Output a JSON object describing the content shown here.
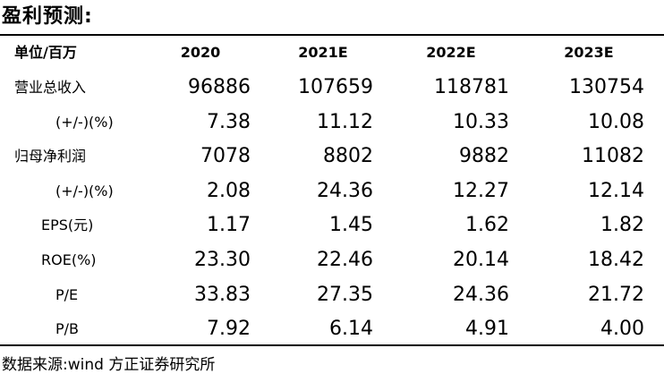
{
  "title": "盈利预测:",
  "header": {
    "unit_label": "单位/百万",
    "columns": [
      "2020",
      "2021E",
      "2022E",
      "2023E"
    ]
  },
  "rows": [
    {
      "label": "营业总收入",
      "values": [
        "96886",
        "107659",
        "118781",
        "130754"
      ]
    },
    {
      "label": "(+/-)(%)",
      "values": [
        "7.38",
        "11.12",
        "10.33",
        "10.08"
      ]
    },
    {
      "label": "归母净利润",
      "values": [
        "7078",
        "8802",
        "9882",
        "11082"
      ]
    },
    {
      "label": "(+/-)(%)",
      "values": [
        "2.08",
        "24.36",
        "12.27",
        "12.14"
      ]
    },
    {
      "label": "EPS(元)",
      "values": [
        "1.17",
        "1.45",
        "1.62",
        "1.82"
      ]
    },
    {
      "label": "ROE(%)",
      "values": [
        "23.30",
        "22.46",
        "20.14",
        "18.42"
      ]
    },
    {
      "label": "P/E",
      "values": [
        "33.83",
        "27.35",
        "24.36",
        "21.72"
      ]
    },
    {
      "label": "P/B",
      "values": [
        "7.92",
        "6.14",
        "4.91",
        "4.00"
      ]
    }
  ],
  "source": "数据来源:wind 方正证券研究所"
}
